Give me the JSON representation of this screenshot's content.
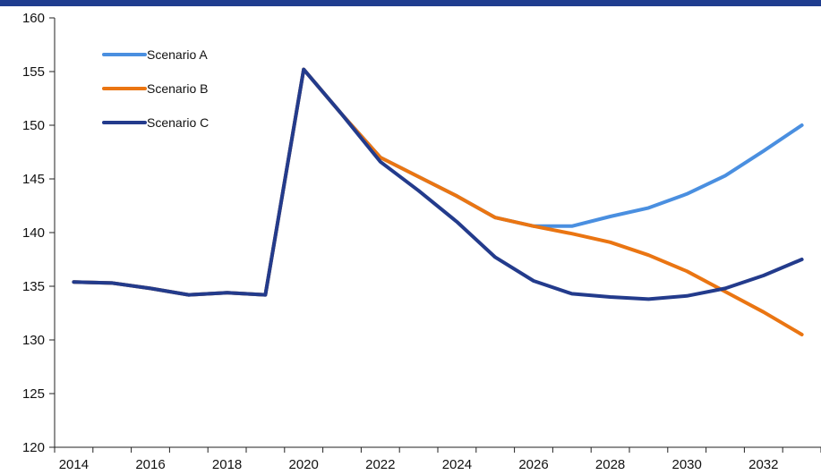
{
  "colors": {
    "band": "#1f3d8f"
  },
  "chart_data": {
    "type": "line",
    "title": "",
    "xlabel": "",
    "ylabel": "",
    "x": [
      2014,
      2015,
      2016,
      2017,
      2018,
      2019,
      2020,
      2021,
      2022,
      2023,
      2024,
      2025,
      2026,
      2027,
      2028,
      2029,
      2030,
      2031,
      2032,
      2033
    ],
    "x_tick_labels": [
      "2014",
      "2016",
      "2018",
      "2020",
      "2022",
      "2024",
      "2026",
      "2028",
      "2030",
      "2032"
    ],
    "ylim": [
      120,
      160
    ],
    "y_ticks": [
      120,
      125,
      130,
      135,
      140,
      145,
      150,
      155,
      160
    ],
    "grid": false,
    "legend_position": "top-left",
    "series": [
      {
        "name": "Scenario A",
        "color": "#4a8fe0",
        "values": [
          135.4,
          135.3,
          134.8,
          134.2,
          134.4,
          134.2,
          155.2,
          151.0,
          147.0,
          145.2,
          143.4,
          141.4,
          140.6,
          140.6,
          141.5,
          142.3,
          143.6,
          145.3,
          147.6,
          150.0
        ]
      },
      {
        "name": "Scenario B",
        "color": "#ea7512",
        "values": [
          135.4,
          135.3,
          134.8,
          134.2,
          134.4,
          134.2,
          155.2,
          151.0,
          147.0,
          145.2,
          143.4,
          141.4,
          140.6,
          139.9,
          139.1,
          137.9,
          136.4,
          134.5,
          132.6,
          130.5
        ]
      },
      {
        "name": "Scenario C",
        "color": "#233b8c",
        "values": [
          135.4,
          135.3,
          134.8,
          134.2,
          134.4,
          134.2,
          155.2,
          151.0,
          146.6,
          143.9,
          141.0,
          137.7,
          135.5,
          134.3,
          134.0,
          133.8,
          134.1,
          134.8,
          136.0,
          137.5
        ]
      }
    ]
  }
}
